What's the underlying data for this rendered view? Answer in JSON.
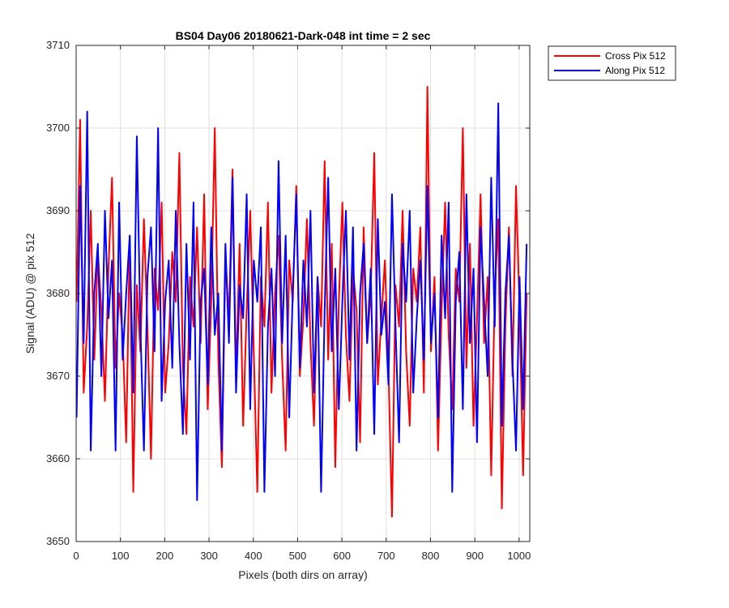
{
  "chart_data": {
    "type": "line",
    "title": "BS04 Day06 20180621-Dark-048 int time = 2 sec",
    "xlabel": "Pixels (both dirs on array)",
    "ylabel": "Signal (ADU) @ pix 512",
    "xlim": [
      0,
      1024
    ],
    "ylim": [
      3650,
      3710
    ],
    "xticks": [
      0,
      100,
      200,
      300,
      400,
      500,
      600,
      700,
      800,
      900,
      1000
    ],
    "yticks": [
      3650,
      3660,
      3670,
      3680,
      3690,
      3700,
      3710
    ],
    "xtick_labels": [
      "0",
      "100",
      "200",
      "300",
      "400",
      "500",
      "600",
      "700",
      "800",
      "900",
      "1000"
    ],
    "ytick_labels": [
      "3650",
      "3660",
      "3670",
      "3680",
      "3690",
      "3700",
      "3710"
    ],
    "grid": true,
    "legend_position": "outside-top-right",
    "x": {
      "start": 1,
      "step": 8,
      "count": 128
    },
    "series": [
      {
        "name": "Cross Pix 512",
        "color": "#ff0000",
        "values": [
          3679,
          3701,
          3668,
          3676,
          3690,
          3672,
          3685,
          3678,
          3667,
          3683,
          3694,
          3671,
          3680,
          3675,
          3662,
          3687,
          3656,
          3681,
          3673,
          3689,
          3676,
          3660,
          3683,
          3678,
          3691,
          3668,
          3674,
          3685,
          3679,
          3697,
          3671,
          3663,
          3682,
          3676,
          3688,
          3674,
          3692,
          3666,
          3679,
          3700,
          3672,
          3659,
          3684,
          3677,
          3695,
          3670,
          3686,
          3664,
          3678,
          3690,
          3673,
          3656,
          3682,
          3676,
          3691,
          3668,
          3680,
          3687,
          3672,
          3661,
          3684,
          3679,
          3693,
          3670,
          3677,
          3689,
          3674,
          3664,
          3682,
          3676,
          3696,
          3672,
          3686,
          3659,
          3679,
          3691,
          3675,
          3667,
          3683,
          3678,
          3662,
          3688,
          3674,
          3680,
          3697,
          3669,
          3677,
          3684,
          3671,
          3653,
          3681,
          3676,
          3690,
          3673,
          3664,
          3683,
          3679,
          3688,
          3668,
          3705,
          3673,
          3682,
          3661,
          3678,
          3691,
          3675,
          3666,
          3683,
          3679,
          3700,
          3671,
          3686,
          3664,
          3677,
          3692,
          3674,
          3682,
          3658,
          3680,
          3689,
          3654,
          3676,
          3688,
          3670,
          3693,
          3678,
          3658,
          3680
        ]
      },
      {
        "name": "Along Pix 512",
        "color": "#0000ff",
        "values": [
          3665,
          3693,
          3674,
          3702,
          3661,
          3680,
          3686,
          3670,
          3690,
          3677,
          3684,
          3661,
          3691,
          3672,
          3680,
          3687,
          3668,
          3699,
          3676,
          3661,
          3682,
          3688,
          3673,
          3700,
          3667,
          3679,
          3684,
          3671,
          3690,
          3674,
          3663,
          3686,
          3672,
          3691,
          3655,
          3679,
          3683,
          3669,
          3688,
          3675,
          3680,
          3661,
          3686,
          3674,
          3694,
          3668,
          3681,
          3677,
          3692,
          3666,
          3684,
          3679,
          3688,
          3656,
          3676,
          3683,
          3670,
          3696,
          3674,
          3687,
          3665,
          3680,
          3692,
          3671,
          3684,
          3676,
          3690,
          3668,
          3682,
          3656,
          3678,
          3694,
          3673,
          3683,
          3666,
          3679,
          3690,
          3672,
          3688,
          3661,
          3680,
          3686,
          3674,
          3683,
          3663,
          3689,
          3675,
          3679,
          3669,
          3692,
          3676,
          3662,
          3686,
          3679,
          3690,
          3668,
          3677,
          3684,
          3672,
          3693,
          3674,
          3680,
          3665,
          3687,
          3677,
          3691,
          3656,
          3679,
          3685,
          3666,
          3692,
          3674,
          3683,
          3662,
          3688,
          3679,
          3670,
          3694,
          3676,
          3703,
          3664,
          3680,
          3687,
          3672,
          3661,
          3682,
          3666,
          3686
        ]
      }
    ]
  }
}
